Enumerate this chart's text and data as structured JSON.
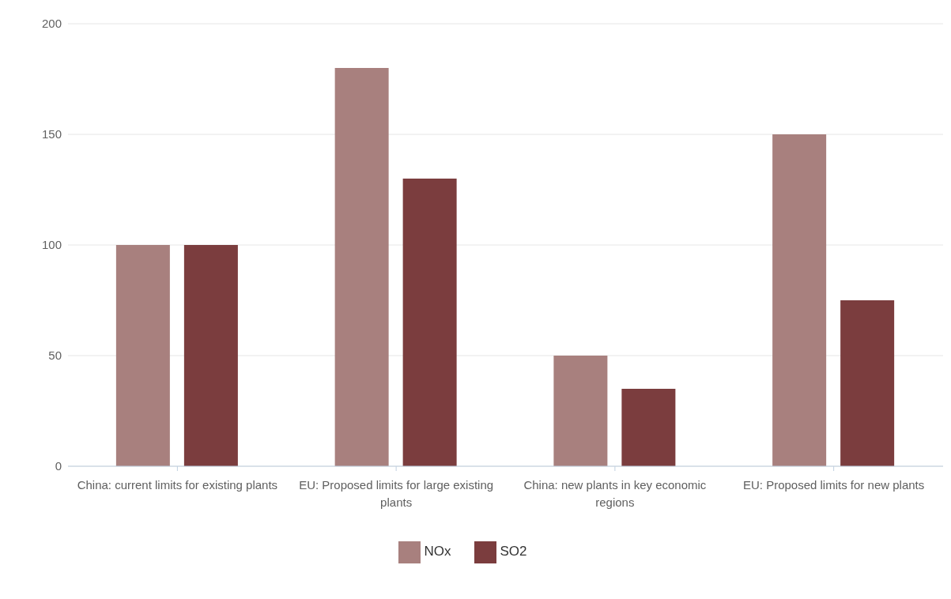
{
  "chart_data": {
    "type": "bar",
    "categories": [
      "China: current limits for existing plants",
      "EU: Proposed limits for large existing plants",
      "China: new plants in key economic regions",
      "EU: Proposed limits for new plants"
    ],
    "series": [
      {
        "name": "NOx",
        "color": "#a8807e",
        "values": [
          100,
          180,
          50,
          150
        ]
      },
      {
        "name": "SO2",
        "color": "#7b3d3e",
        "values": [
          100,
          130,
          35,
          75
        ]
      }
    ],
    "ylim": [
      0,
      200
    ],
    "yticks": [
      0,
      50,
      100,
      150,
      200
    ],
    "grid": "y",
    "legend": "bottom"
  }
}
